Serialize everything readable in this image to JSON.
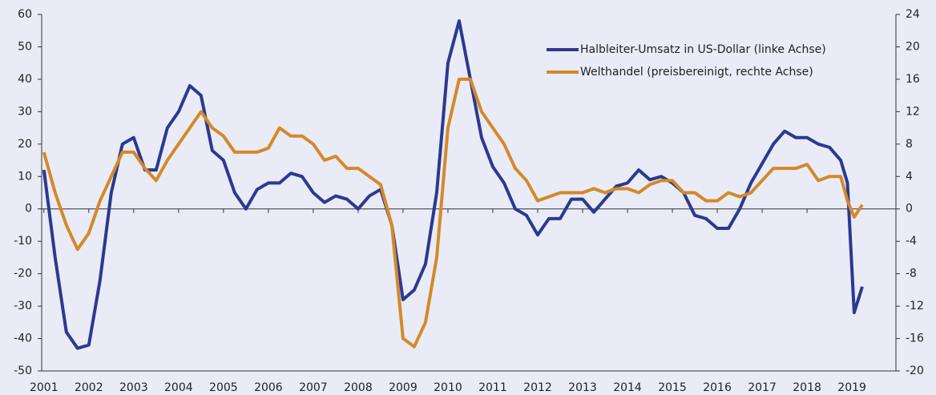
{
  "chart_data": {
    "type": "line",
    "x": [
      2001,
      2001.25,
      2001.5,
      2001.75,
      2002,
      2002.25,
      2002.5,
      2002.75,
      2003,
      2003.25,
      2003.5,
      2003.75,
      2004,
      2004.25,
      2004.5,
      2004.75,
      2005,
      2005.25,
      2005.5,
      2005.75,
      2006,
      2006.25,
      2006.5,
      2006.75,
      2007,
      2007.25,
      2007.5,
      2007.75,
      2008,
      2008.25,
      2008.5,
      2008.75,
      2009,
      2009.25,
      2009.5,
      2009.75,
      2010,
      2010.25,
      2010.5,
      2010.75,
      2011,
      2011.25,
      2011.5,
      2011.75,
      2012,
      2012.25,
      2012.5,
      2012.75,
      2013,
      2013.25,
      2013.5,
      2013.75,
      2014,
      2014.25,
      2014.5,
      2014.75,
      2015,
      2015.25,
      2015.5,
      2015.75,
      2016,
      2016.25,
      2016.5,
      2016.75,
      2017,
      2017.25,
      2017.5,
      2017.75,
      2018,
      2018.25,
      2018.5,
      2018.75,
      2018.9,
      2019.05,
      2019.23
    ],
    "series": [
      {
        "name": "Halbleiter-Umsatz in US-Dollar (linke Achse)",
        "color": "#2b3990",
        "values": [
          12,
          -15,
          -38,
          -43,
          -42,
          -22,
          5,
          20,
          22,
          12,
          12,
          25,
          30,
          38,
          35,
          18,
          15,
          5,
          0,
          6,
          8,
          8,
          11,
          10,
          5,
          2,
          4,
          3,
          0,
          4,
          6,
          -5,
          -28,
          -25,
          -17,
          5,
          45,
          58,
          40,
          22,
          13,
          8,
          0,
          -2,
          -8,
          -3,
          -3,
          3,
          3,
          -1,
          3,
          7,
          8,
          12,
          9,
          10,
          8,
          5,
          -2,
          -3,
          -6,
          -6,
          0,
          8,
          14,
          20,
          24,
          22,
          22,
          20,
          19,
          15,
          8,
          -32,
          -24
        ]
      },
      {
        "name": "Welthandel (preisbereinigt, rechte Achse)",
        "color": "#d4892a",
        "axis": "y2",
        "values": [
          7,
          2,
          -2,
          -5,
          -3,
          1,
          4,
          7,
          7,
          5,
          3.5,
          6,
          8,
          10,
          12,
          10,
          9,
          7,
          7,
          7,
          7.5,
          10,
          9,
          9,
          8,
          6,
          6.5,
          5,
          5,
          4,
          3,
          -2,
          -16,
          -17,
          -14,
          -6,
          10,
          16,
          16,
          12,
          10,
          8,
          5,
          3.5,
          1,
          1.5,
          2,
          2,
          2,
          2.5,
          2,
          2.5,
          2.5,
          2,
          3,
          3.5,
          3.5,
          2,
          2,
          1,
          1,
          2,
          1.5,
          2,
          3.5,
          5,
          5,
          5,
          5.5,
          3.5,
          4,
          4,
          1,
          -1,
          0.5
        ]
      }
    ],
    "xlim": [
      2000.95,
      2019.98
    ],
    "xticks": [
      2001,
      2002,
      2003,
      2004,
      2005,
      2006,
      2007,
      2008,
      2009,
      2010,
      2011,
      2012,
      2013,
      2014,
      2015,
      2016,
      2017,
      2018,
      2019
    ],
    "ylim": [
      -50,
      60
    ],
    "yticks": [
      -50,
      -40,
      -30,
      -20,
      -10,
      0,
      10,
      20,
      30,
      40,
      50,
      60
    ],
    "y2lim": [
      -20,
      24
    ],
    "y2ticks": [
      -20,
      -16,
      -12,
      -8,
      -4,
      0,
      4,
      8,
      12,
      16,
      20,
      24
    ],
    "legend": "upper right"
  }
}
